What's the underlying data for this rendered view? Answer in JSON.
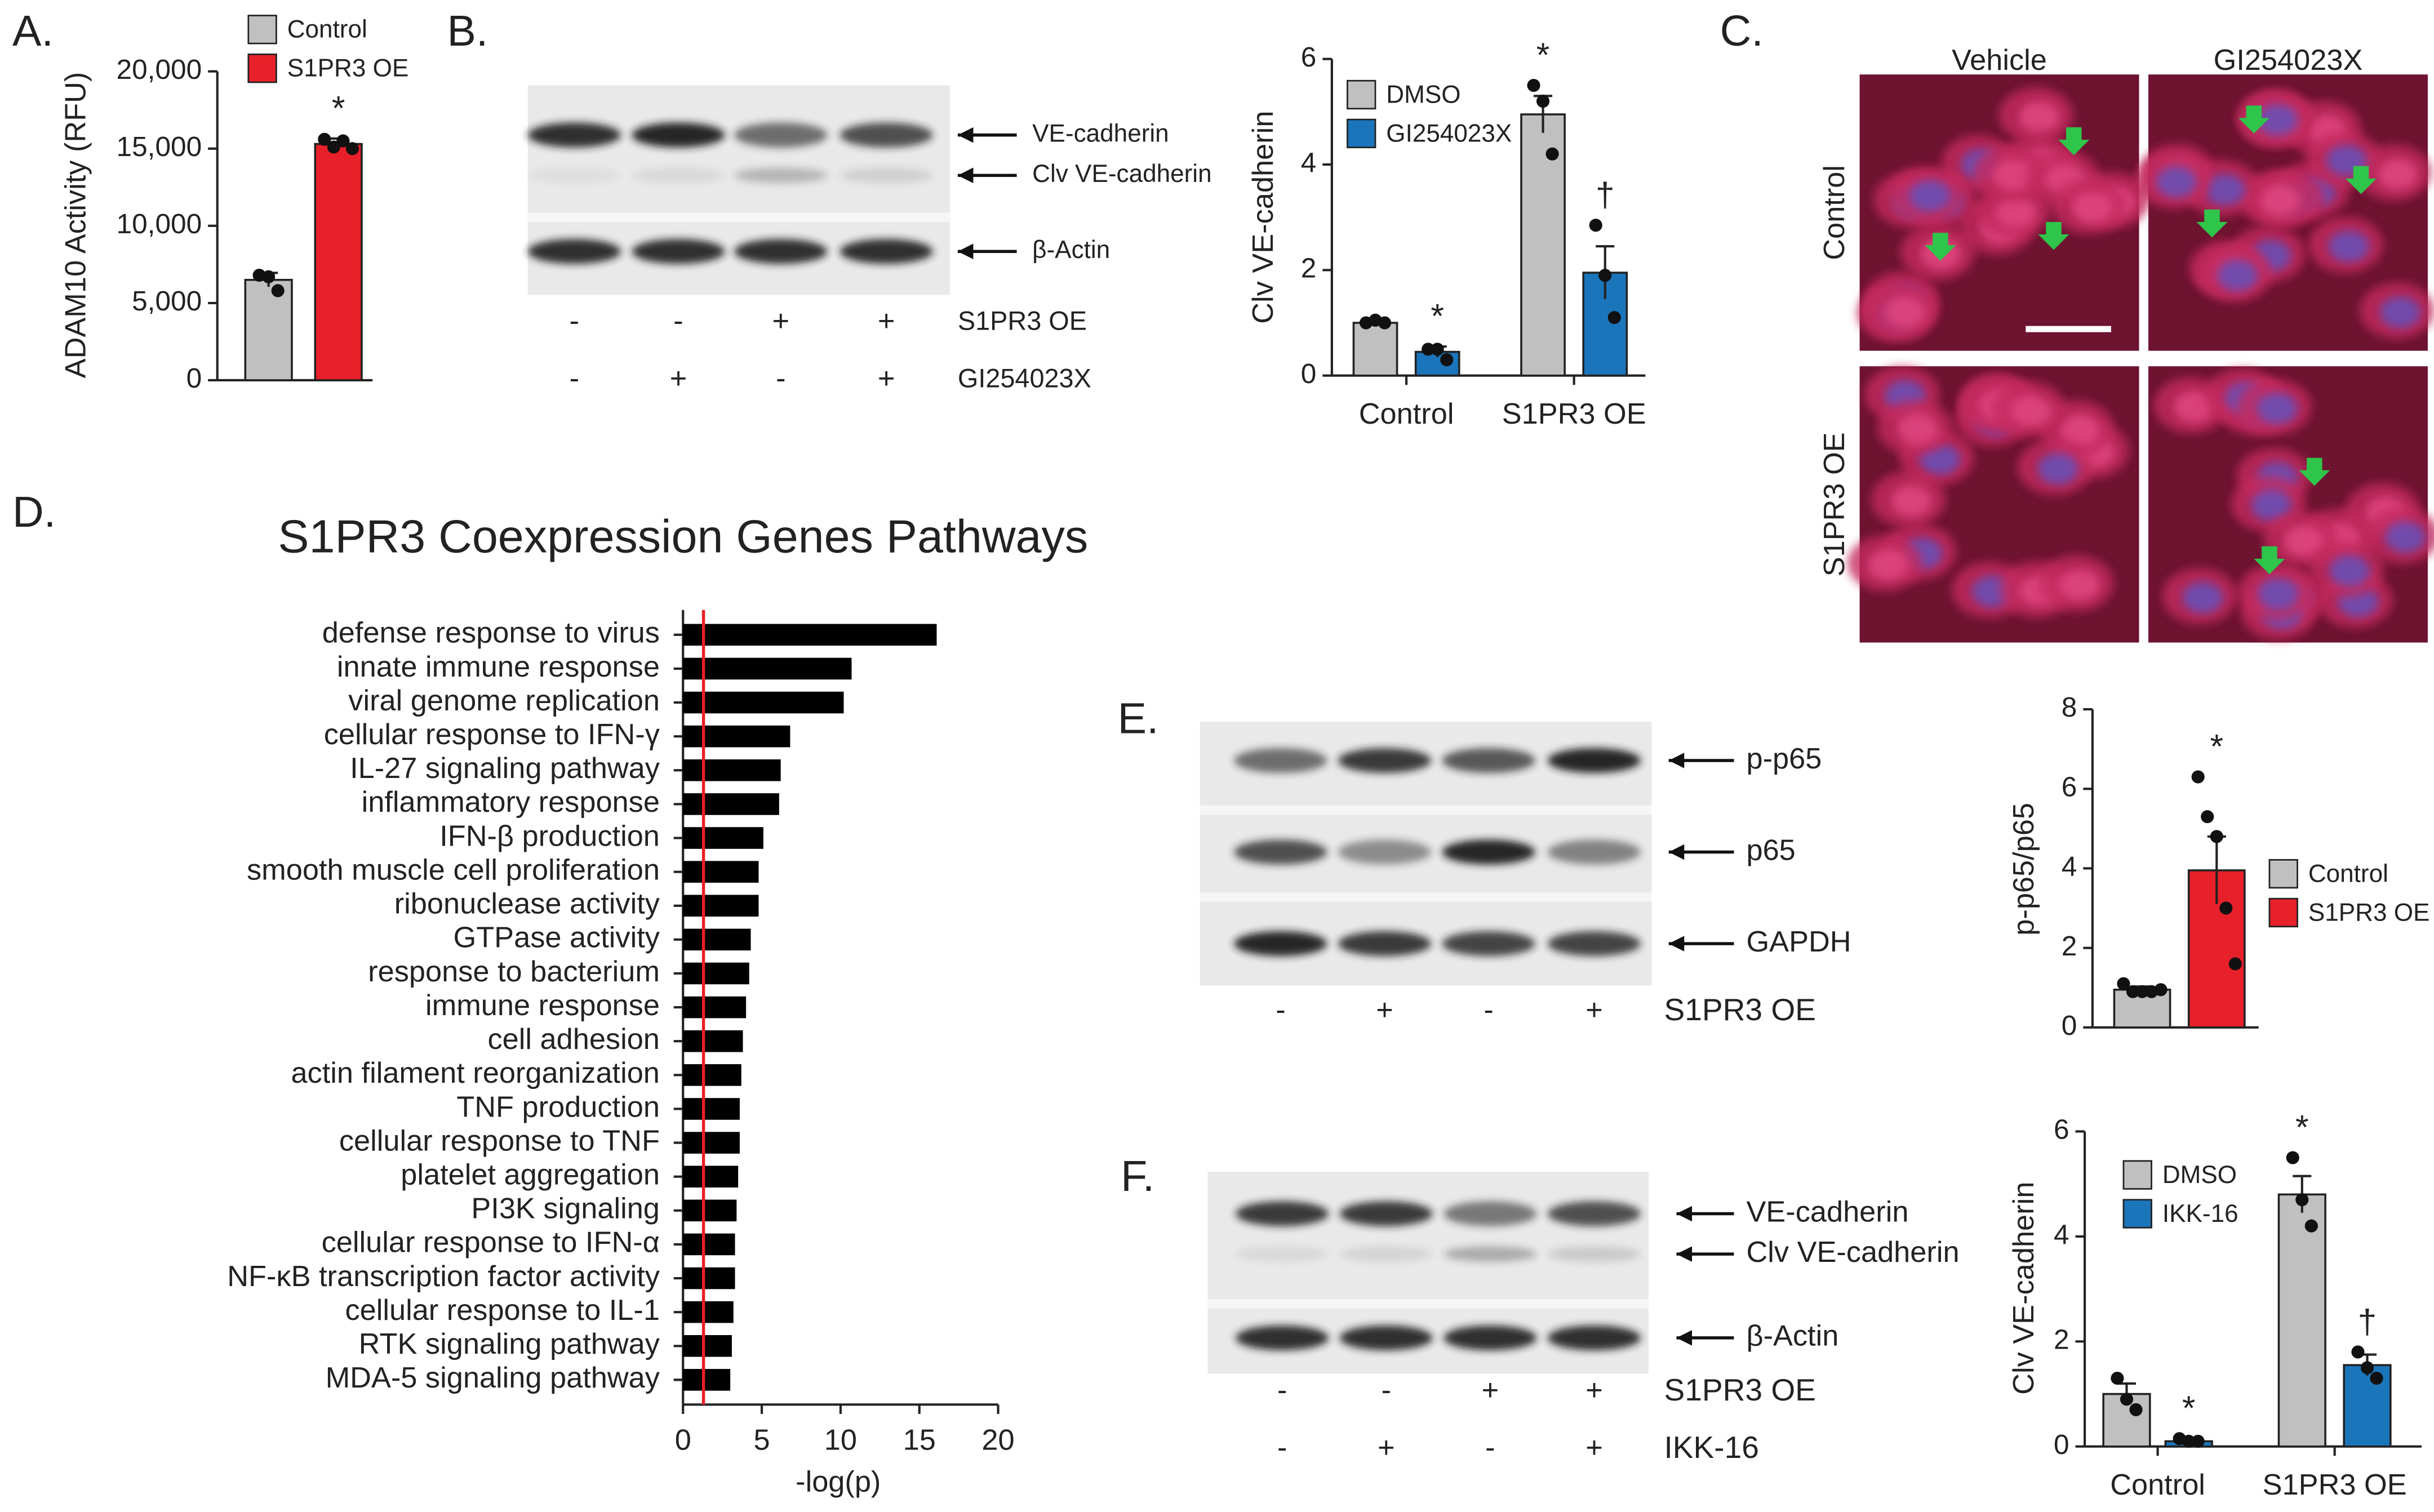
{
  "panel_labels": [
    "A.",
    "B.",
    "C.",
    "D.",
    "E.",
    "F."
  ],
  "chart_data": [
    {
      "type": "bar",
      "ylabel": "ADAM10 Activity (RFU)",
      "categories": [
        null
      ],
      "ylim": [
        0,
        20000
      ],
      "yticks": [
        0,
        {
          "value": 5000,
          "label": "5,000"
        },
        {
          "value": 10000,
          "label": "10,000"
        },
        {
          "value": 15000,
          "label": "15,000"
        },
        {
          "value": 20000,
          "label": "20,000"
        }
      ],
      "series": [
        {
          "name": "Control",
          "color": "#c0c0c0",
          "values": [
            6500
          ],
          "errors": [
            450
          ],
          "points": [
            [
              6800,
              6700,
              5800
            ]
          ],
          "annotations": [
            null
          ]
        },
        {
          "name": "S1PR3 OE",
          "color": "#e8202a",
          "values": [
            15300
          ],
          "errors": [
            350
          ],
          "points": [
            [
              15600,
              15100,
              15500,
              15000
            ]
          ],
          "annotations": [
            "*"
          ]
        }
      ]
    },
    {
      "type": "bar",
      "ylabel": "Clv VE-cadherin",
      "categories": [
        "Control",
        "S1PR3 OE"
      ],
      "ylim": [
        0,
        6
      ],
      "yticks": [
        0,
        2,
        4,
        6
      ],
      "series": [
        {
          "name": "DMSO",
          "color": "#c0c0c0",
          "values": [
            1.0,
            4.95
          ],
          "errors": [
            0.05,
            0.35
          ],
          "points": [
            [
              1.0,
              1.05,
              1.0
            ],
            [
              5.5,
              5.2,
              4.2
            ]
          ],
          "annotations": [
            null,
            "*"
          ]
        },
        {
          "name": "GI254023X",
          "color": "#1b75bb",
          "values": [
            0.45,
            1.95
          ],
          "errors": [
            0.1,
            0.5
          ],
          "points": [
            [
              0.5,
              0.5,
              0.3
            ],
            [
              2.85,
              1.9,
              1.1
            ]
          ],
          "annotations": [
            "*",
            "†"
          ]
        }
      ]
    },
    {
      "type": "barh",
      "title": "S1PR3 Coexpression Genes Pathways",
      "xlabel": "-log(p)",
      "categories": [
        "defense response to virus",
        "innate immune response",
        "viral genome replication",
        "cellular response to IFN-γ",
        "IL-27 signaling pathway",
        "inflammatory response",
        "IFN-β production",
        "smooth muscle cell proliferation",
        "ribonuclease activity",
        "GTPase activity",
        "response to bacterium",
        "immune response",
        "cell adhesion",
        "actin filament reorganization",
        "TNF production",
        "cellular response to TNF",
        "platelet aggregation",
        "PI3K signaling",
        "cellular response to IFN-α",
        "NF-κB transcription factor activity",
        "cellular response to IL-1",
        "RTK signaling pathway",
        "MDA-5 signaling pathway"
      ],
      "values": [
        16.1,
        10.7,
        10.2,
        6.8,
        6.2,
        6.1,
        5.1,
        4.8,
        4.8,
        4.3,
        4.2,
        4.0,
        3.8,
        3.7,
        3.6,
        3.6,
        3.5,
        3.4,
        3.3,
        3.3,
        3.2,
        3.1,
        3.0
      ],
      "color": "#000000",
      "xlim": [
        0,
        20
      ],
      "xticks": [
        0,
        5,
        10,
        15,
        20
      ],
      "reference_line": {
        "value": 1.3,
        "color": "#e8202a"
      }
    },
    {
      "type": "bar",
      "ylabel": "p-p65/p65",
      "categories": [
        null
      ],
      "ylim": [
        0,
        8
      ],
      "yticks": [
        0,
        2,
        4,
        6,
        8
      ],
      "series": [
        {
          "name": "Control",
          "color": "#c0c0c0",
          "values": [
            0.95
          ],
          "errors": [
            0.08
          ],
          "points": [
            [
              1.1,
              0.9,
              0.9,
              0.9,
              0.95
            ]
          ],
          "annotations": [
            null
          ]
        },
        {
          "name": "S1PR3 OE",
          "color": "#e8202a",
          "values": [
            3.95
          ],
          "errors": [
            0.85
          ],
          "points": [
            [
              6.3,
              5.3,
              4.8,
              3.0,
              1.6
            ]
          ],
          "annotations": [
            "*"
          ]
        }
      ]
    },
    {
      "type": "bar",
      "ylabel": "Clv VE-cadherin",
      "categories": [
        "Control",
        "S1PR3 OE"
      ],
      "ylim": [
        0,
        6
      ],
      "yticks": [
        0,
        2,
        4,
        6
      ],
      "series": [
        {
          "name": "DMSO",
          "color": "#c0c0c0",
          "values": [
            1.0,
            4.8
          ],
          "errors": [
            0.2,
            0.35
          ],
          "points": [
            [
              1.3,
              0.9,
              0.7
            ],
            [
              5.5,
              4.7,
              4.2
            ]
          ],
          "annotations": [
            null,
            "*"
          ]
        },
        {
          "name": "IKK-16",
          "color": "#1b75bb",
          "values": [
            0.1,
            1.55
          ],
          "errors": [
            0.03,
            0.2
          ],
          "points": [
            [
              0.15,
              0.1,
              0.1
            ],
            [
              1.8,
              1.5,
              1.3
            ]
          ],
          "annotations": [
            "*",
            "†"
          ]
        }
      ]
    }
  ],
  "blots": [
    {
      "bands": [
        "VE-cadherin",
        "Clv VE-cadherin",
        "β-Actin"
      ],
      "conditions": [
        {
          "name": "S1PR3 OE",
          "signs": [
            "-",
            "-",
            "+",
            "+"
          ]
        },
        {
          "name": "GI254023X",
          "signs": [
            "-",
            "+",
            "-",
            "+"
          ]
        }
      ]
    },
    {
      "bands": [
        "p-p65",
        "p65",
        "GAPDH"
      ],
      "conditions": [
        {
          "name": "S1PR3 OE",
          "signs": [
            "-",
            "+",
            "-",
            "+"
          ]
        }
      ]
    },
    {
      "bands": [
        "VE-cadherin",
        "Clv VE-cadherin",
        "β-Actin"
      ],
      "conditions": [
        {
          "name": "S1PR3 OE",
          "signs": [
            "-",
            "-",
            "+",
            "+"
          ]
        },
        {
          "name": "IKK-16",
          "signs": [
            "-",
            "+",
            "-",
            "+"
          ]
        }
      ]
    }
  ],
  "micrographs": {
    "columns": [
      "Vehicle",
      "GI254023X"
    ],
    "rows": [
      "Control",
      "S1PR3 OE"
    ]
  }
}
